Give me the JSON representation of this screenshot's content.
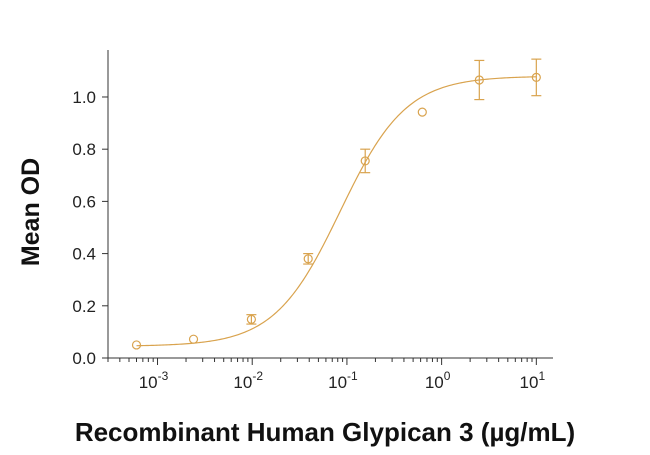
{
  "chart_data": {
    "type": "scatter",
    "xlabel": "Recombinant Human Glypican 3 (µg/mL)",
    "ylabel": "Mean OD",
    "x_scale": "log",
    "xlim": [
      0.0003,
      15
    ],
    "ylim": [
      0.0,
      1.18
    ],
    "x_ticks": [
      {
        "value": 0.001,
        "base": "10",
        "exp": "-3"
      },
      {
        "value": 0.01,
        "base": "10",
        "exp": "-2"
      },
      {
        "value": 0.1,
        "base": "10",
        "exp": "-1"
      },
      {
        "value": 1,
        "base": "10",
        "exp": "0"
      },
      {
        "value": 10,
        "base": "10",
        "exp": "1"
      }
    ],
    "y_ticks": [
      {
        "value": 0.0,
        "label": "0.0"
      },
      {
        "value": 0.2,
        "label": "0.2"
      },
      {
        "value": 0.4,
        "label": "0.4"
      },
      {
        "value": 0.6,
        "label": "0.6"
      },
      {
        "value": 0.8,
        "label": "0.8"
      },
      {
        "value": 1.0,
        "label": "1.0"
      }
    ],
    "grid": false,
    "color": "#d9a34e",
    "series": [
      {
        "points": [
          {
            "x": 0.0006,
            "y": 0.05,
            "err": 0.0
          },
          {
            "x": 0.0024,
            "y": 0.072,
            "err": 0.0
          },
          {
            "x": 0.0098,
            "y": 0.148,
            "err": 0.018
          },
          {
            "x": 0.039,
            "y": 0.38,
            "err": 0.02
          },
          {
            "x": 0.156,
            "y": 0.755,
            "err": 0.045
          },
          {
            "x": 0.625,
            "y": 0.942,
            "err": 0.0
          },
          {
            "x": 2.5,
            "y": 1.065,
            "err": 0.075
          },
          {
            "x": 10,
            "y": 1.075,
            "err": 0.07
          }
        ],
        "fit": {
          "model": "4PL",
          "bottom": 0.045,
          "top": 1.08,
          "ec50": 0.085,
          "hill": 1.25
        }
      }
    ]
  }
}
